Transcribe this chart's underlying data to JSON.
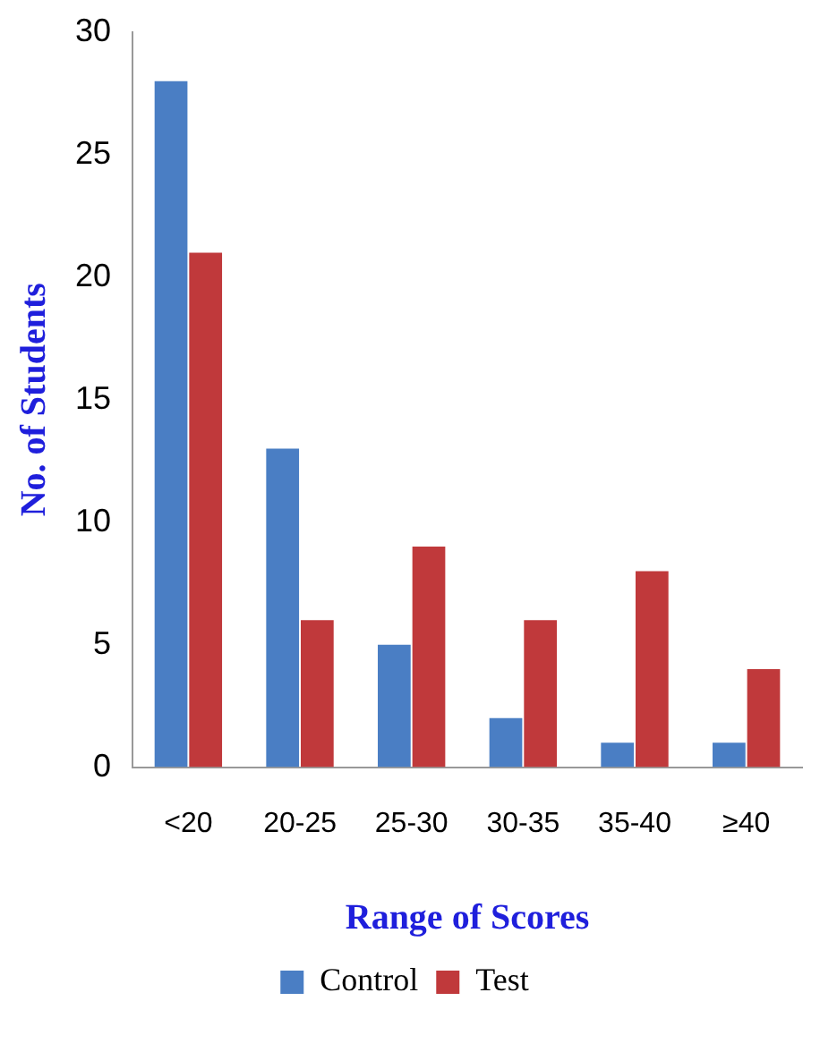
{
  "chart_data": {
    "type": "bar",
    "xlabel": "Range of Scores",
    "ylabel": "No. of Students",
    "categories": [
      "<20",
      "20-25",
      "25-30",
      "30-35",
      "35-40",
      "≥40"
    ],
    "series": [
      {
        "name": "Control",
        "color": "#4a7ec4",
        "values": [
          28,
          13,
          5,
          2,
          1,
          1
        ]
      },
      {
        "name": "Test",
        "color": "#c0393b",
        "values": [
          21,
          6,
          9,
          6,
          8,
          4
        ]
      }
    ],
    "ylim": [
      0,
      30
    ],
    "yticks": [
      0,
      5,
      10,
      15,
      20,
      25,
      30
    ],
    "grid": false,
    "legend": "bottom"
  }
}
